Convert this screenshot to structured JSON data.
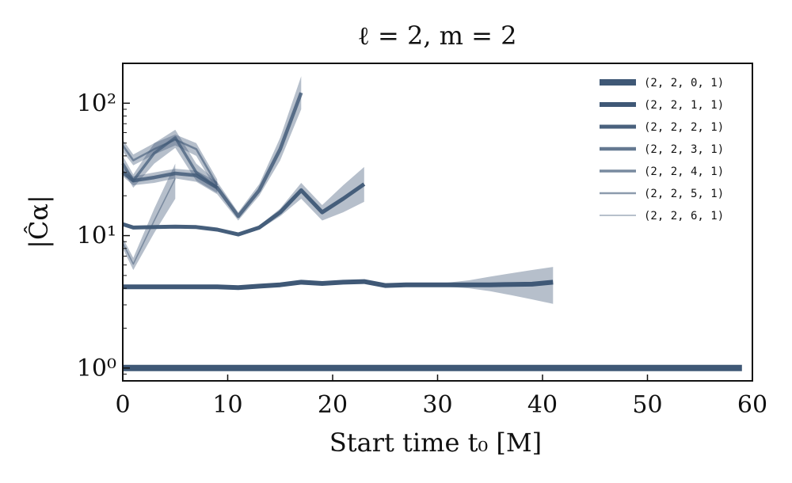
{
  "chart_data": {
    "type": "line",
    "title": "ℓ = 2, m = 2",
    "xlabel": "Start time t₀ [M]",
    "ylabel": "|Ĉα|",
    "xlim": [
      0,
      60
    ],
    "ylim": [
      0.8,
      200
    ],
    "y_scale": "log",
    "grid": false,
    "legend_position": "top-right",
    "x_ticks": [
      0,
      10,
      20,
      30,
      40,
      50,
      60
    ],
    "x_tick_labels": [
      "0",
      "10",
      "20",
      "30",
      "40",
      "50",
      "60"
    ],
    "y_ticks": [
      1,
      10,
      100
    ],
    "y_tick_labels": [
      "10⁰",
      "10¹",
      "10²"
    ],
    "colors": {
      "line": "#3f5876",
      "band": "#3f5876"
    },
    "series": [
      {
        "name": "(2, 2, 0, 1)",
        "x": [
          0,
          5,
          10,
          15,
          20,
          25,
          30,
          35,
          40,
          45,
          50,
          55,
          59
        ],
        "y": [
          1,
          1,
          1,
          1,
          1,
          1,
          1,
          1,
          1,
          1,
          1,
          1,
          1
        ],
        "lo": [
          1,
          1,
          1,
          1,
          1,
          1,
          1,
          1,
          1,
          1,
          1,
          1,
          1
        ],
        "hi": [
          1,
          1,
          1,
          1,
          1,
          1,
          1,
          1,
          1,
          1,
          1,
          1,
          1
        ]
      },
      {
        "name": "(2, 2, 1, 1)",
        "x": [
          0,
          5,
          9,
          11,
          13,
          15,
          17,
          19,
          21,
          23,
          25,
          27,
          29,
          31,
          33,
          35,
          37,
          39,
          41
        ],
        "y": [
          4.1,
          4.1,
          4.1,
          4.05,
          4.15,
          4.25,
          4.45,
          4.35,
          4.45,
          4.5,
          4.2,
          4.25,
          4.25,
          4.25,
          4.25,
          4.25,
          4.28,
          4.3,
          4.45
        ],
        "lo": [
          4.05,
          4.05,
          4.05,
          4.0,
          4.08,
          4.15,
          4.35,
          4.25,
          4.35,
          4.35,
          4.1,
          4.15,
          4.15,
          4.1,
          4.0,
          3.8,
          3.55,
          3.3,
          3.05
        ],
        "hi": [
          4.15,
          4.15,
          4.15,
          4.1,
          4.22,
          4.35,
          4.55,
          4.45,
          4.55,
          4.65,
          4.3,
          4.35,
          4.35,
          4.42,
          4.6,
          4.9,
          5.2,
          5.5,
          5.8
        ]
      },
      {
        "name": "(2, 2, 2, 1)",
        "x": [
          0,
          1,
          3,
          5,
          7,
          9,
          11,
          13,
          15,
          17,
          19,
          21,
          23
        ],
        "y": [
          12.2,
          11.5,
          11.6,
          11.7,
          11.6,
          11.1,
          10.2,
          11.5,
          15,
          22,
          15,
          19,
          24.5
        ],
        "lo": [
          11.8,
          11.2,
          11.3,
          11.4,
          11.3,
          10.8,
          9.9,
          11.1,
          14,
          19,
          13,
          15,
          18
        ],
        "hi": [
          12.6,
          11.8,
          11.9,
          12,
          11.9,
          11.4,
          10.5,
          11.9,
          16,
          25,
          17,
          24,
          33
        ]
      },
      {
        "name": "(2, 2, 3, 1)",
        "x": [
          0,
          1,
          3,
          5,
          7,
          9,
          11,
          13,
          15,
          17
        ],
        "y": [
          30,
          26,
          27.5,
          29.5,
          28.5,
          23,
          14,
          22,
          45,
          120
        ],
        "lo": [
          28,
          24,
          25,
          27,
          25.5,
          20.5,
          13,
          20,
          37,
          90
        ],
        "hi": [
          33,
          28,
          30,
          32,
          31,
          25.5,
          15,
          24.5,
          55,
          160
        ]
      },
      {
        "name": "(2, 2, 4, 1)",
        "x": [
          0,
          1,
          3,
          5,
          7,
          9
        ],
        "y": [
          35,
          26,
          42,
          55,
          30,
          23
        ],
        "lo": [
          31,
          23,
          35,
          46,
          26,
          21
        ],
        "hi": [
          40,
          29,
          50,
          63,
          35,
          25.5
        ]
      },
      {
        "name": "(2, 2, 5, 1)",
        "x": [
          0,
          1,
          3,
          5,
          7,
          9
        ],
        "y": [
          48,
          37,
          45,
          53,
          45,
          24
        ],
        "lo": [
          43,
          34,
          41,
          48,
          40,
          21.5
        ],
        "hi": [
          53,
          41,
          50,
          58,
          50,
          26.5
        ]
      },
      {
        "name": "(2, 2, 6, 1)",
        "x": [
          0,
          1,
          3,
          5
        ],
        "y": [
          8.8,
          6.1,
          13,
          27
        ],
        "lo": [
          8,
          5.5,
          10.5,
          19
        ],
        "hi": [
          9.6,
          6.8,
          16,
          35
        ]
      }
    ]
  }
}
